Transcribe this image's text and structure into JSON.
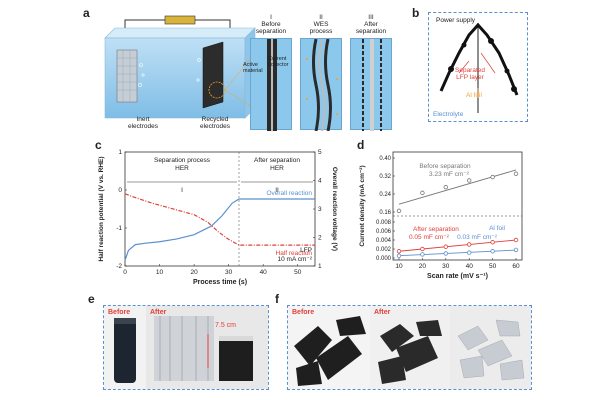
{
  "panel_letters": [
    "a",
    "b",
    "c",
    "d",
    "e",
    "f"
  ],
  "panel_a": {
    "inert_label": "Inert\nelectrodes",
    "recycled_label": "Recycled\nelectrodes",
    "steps": [
      {
        "numeral": "I",
        "title": "Before\nseparation"
      },
      {
        "numeral": "II",
        "title": "WES\nprocess"
      },
      {
        "numeral": "III",
        "title": "After\nseparation"
      }
    ],
    "active_material": "Active\nmaterial",
    "current_collector": "Current\ncollector"
  },
  "panel_b": {
    "power_supply": "Power supply",
    "separated_lfp": "Separated\nLFP layer",
    "al_foil": "Al foil",
    "electrolyte": "Electrolyte"
  },
  "chart_data": [
    {
      "type": "line",
      "xlabel": "Process time (s)",
      "ylabel_left": "Half reaction potential (V vs. RHE)",
      "ylabel_right": "Overall reaction voltage (V)",
      "xlim": [
        0,
        55
      ],
      "ylim_left": [
        -2,
        1
      ],
      "ylim_right": [
        1,
        5
      ],
      "x_ticks": [
        "0",
        "10",
        "20",
        "30",
        "40",
        "50"
      ],
      "y_ticks_left": [
        "-2",
        "-1",
        "0",
        "1"
      ],
      "y_ticks_right": [
        "1",
        "2",
        "3",
        "4",
        "5"
      ],
      "regions": [
        {
          "title": "Separation process\nHER",
          "numeral": "I"
        },
        {
          "title": "After separation\nHER",
          "numeral": "II"
        }
      ],
      "region_boundary_x": 33,
      "series": [
        {
          "name": "Overall reaction",
          "axis": "right",
          "color": "#5b8fd0",
          "x": [
            0,
            1,
            3,
            6,
            10,
            15,
            20,
            25,
            28,
            31,
            33,
            36,
            40,
            45,
            50,
            55
          ],
          "y": [
            1.2,
            1.55,
            1.75,
            1.8,
            1.85,
            1.95,
            2.1,
            2.4,
            2.75,
            3.2,
            3.35,
            3.35,
            3.35,
            3.35,
            3.35,
            3.35
          ]
        },
        {
          "name": "Half reaction",
          "axis": "left",
          "color": "#e0403a",
          "x": [
            0,
            3,
            8,
            12,
            16,
            20,
            24,
            27,
            30,
            33,
            36,
            40,
            45,
            50,
            55
          ],
          "y": [
            -0.1,
            -0.2,
            -0.35,
            -0.45,
            -0.55,
            -0.65,
            -0.85,
            -1.1,
            -1.3,
            -1.45,
            -1.45,
            -1.45,
            -1.45,
            -1.45,
            -1.45
          ]
        }
      ],
      "annotations": [
        "LFP",
        "10 mA cm⁻²"
      ]
    },
    {
      "type": "scatter",
      "xlabel": "Scan rate (mV s⁻¹)",
      "ylabel": "Current density (mA cm⁻²)",
      "x_ticks": [
        "10",
        "20",
        "30",
        "40",
        "50",
        "60"
      ],
      "y_ticks_upper": [
        "0.16",
        "0.24",
        "0.32",
        "0.40"
      ],
      "y_ticks_lower": [
        "0.000",
        "0.002",
        "0.004",
        "0.006",
        "0.008"
      ],
      "series": [
        {
          "name": "Before separation",
          "label": "3.23 mF cm⁻²",
          "color": "#777777",
          "x": [
            10,
            20,
            30,
            40,
            50,
            60
          ],
          "y": [
            0.165,
            0.245,
            0.27,
            0.3,
            0.315,
            0.33
          ]
        },
        {
          "name": "After separation",
          "label": "0.05 mF cm⁻²",
          "color": "#e0403a",
          "x": [
            10,
            20,
            30,
            40,
            50,
            60
          ],
          "y": [
            0.0015,
            0.002,
            0.0025,
            0.003,
            0.0035,
            0.004
          ]
        },
        {
          "name": "Al foil",
          "label": "0.03 mF cm⁻²",
          "color": "#5b8fd0",
          "x": [
            10,
            20,
            30,
            40,
            50,
            60
          ],
          "y": [
            0.0005,
            0.0008,
            0.001,
            0.0012,
            0.0015,
            0.0018
          ]
        }
      ]
    }
  ],
  "panel_e": {
    "before": "Before",
    "after": "After",
    "dimension": "7.5 cm"
  },
  "panel_f": {
    "before": "Before",
    "after": "After"
  }
}
